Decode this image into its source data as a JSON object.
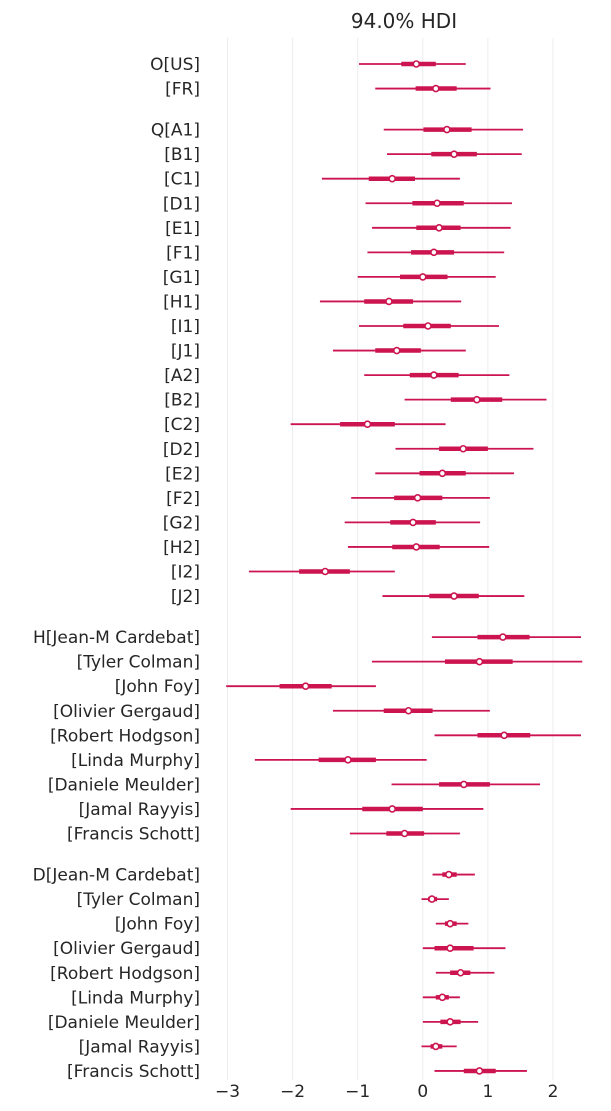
{
  "chart_data": {
    "type": "forest",
    "title": "94.0% HDI",
    "xlim": [
      -3.25,
      2.5
    ],
    "xticks": [
      -3,
      -2,
      -1,
      0,
      1,
      2
    ],
    "xtick_labels": [
      "−3",
      "−2",
      "−1",
      "0",
      "1",
      "2"
    ],
    "grid": "vertical",
    "color": "#cc1550",
    "groups": [
      {
        "name": "O",
        "rows": [
          {
            "label": "O[US]",
            "mean": -0.1,
            "hdi": [
              -0.98,
              0.66
            ],
            "iqr": [
              -0.33,
              0.2
            ]
          },
          {
            "label": "[FR]",
            "mean": 0.2,
            "hdi": [
              -0.73,
              1.04
            ],
            "iqr": [
              -0.11,
              0.52
            ]
          }
        ]
      },
      {
        "name": "Q",
        "rows": [
          {
            "label": "Q[A1]",
            "mean": 0.37,
            "hdi": [
              -0.6,
              1.54
            ],
            "iqr": [
              0.01,
              0.75
            ]
          },
          {
            "label": "[B1]",
            "mean": 0.48,
            "hdi": [
              -0.55,
              1.52
            ],
            "iqr": [
              0.13,
              0.83
            ]
          },
          {
            "label": "[C1]",
            "mean": -0.47,
            "hdi": [
              -1.55,
              0.57
            ],
            "iqr": [
              -0.83,
              -0.12
            ]
          },
          {
            "label": "[D1]",
            "mean": 0.22,
            "hdi": [
              -0.88,
              1.37
            ],
            "iqr": [
              -0.16,
              0.63
            ]
          },
          {
            "label": "[E1]",
            "mean": 0.25,
            "hdi": [
              -0.78,
              1.35
            ],
            "iqr": [
              -0.1,
              0.58
            ]
          },
          {
            "label": "[F1]",
            "mean": 0.17,
            "hdi": [
              -0.85,
              1.25
            ],
            "iqr": [
              -0.18,
              0.48
            ]
          },
          {
            "label": "[G1]",
            "mean": 0.0,
            "hdi": [
              -1.0,
              1.12
            ],
            "iqr": [
              -0.35,
              0.38
            ]
          },
          {
            "label": "[H1]",
            "mean": -0.52,
            "hdi": [
              -1.58,
              0.59
            ],
            "iqr": [
              -0.9,
              -0.15
            ]
          },
          {
            "label": "[I1]",
            "mean": 0.08,
            "hdi": [
              -0.98,
              1.17
            ],
            "iqr": [
              -0.3,
              0.43
            ]
          },
          {
            "label": "[J1]",
            "mean": -0.4,
            "hdi": [
              -1.38,
              0.66
            ],
            "iqr": [
              -0.73,
              -0.03
            ]
          },
          {
            "label": "[A2]",
            "mean": 0.17,
            "hdi": [
              -0.9,
              1.33
            ],
            "iqr": [
              -0.2,
              0.55
            ]
          },
          {
            "label": "[B2]",
            "mean": 0.83,
            "hdi": [
              -0.28,
              1.9
            ],
            "iqr": [
              0.43,
              1.22
            ]
          },
          {
            "label": "[C2]",
            "mean": -0.85,
            "hdi": [
              -2.03,
              0.35
            ],
            "iqr": [
              -1.27,
              -0.43
            ]
          },
          {
            "label": "[D2]",
            "mean": 0.62,
            "hdi": [
              -0.42,
              1.7
            ],
            "iqr": [
              0.25,
              1.0
            ]
          },
          {
            "label": "[E2]",
            "mean": 0.3,
            "hdi": [
              -0.73,
              1.4
            ],
            "iqr": [
              -0.05,
              0.66
            ]
          },
          {
            "label": "[F2]",
            "mean": -0.08,
            "hdi": [
              -1.1,
              1.03
            ],
            "iqr": [
              -0.44,
              0.3
            ]
          },
          {
            "label": "[G2]",
            "mean": -0.15,
            "hdi": [
              -1.2,
              0.88
            ],
            "iqr": [
              -0.5,
              0.2
            ]
          },
          {
            "label": "[H2]",
            "mean": -0.1,
            "hdi": [
              -1.15,
              1.02
            ],
            "iqr": [
              -0.47,
              0.26
            ]
          },
          {
            "label": "[I2]",
            "mean": -1.5,
            "hdi": [
              -2.67,
              -0.43
            ],
            "iqr": [
              -1.9,
              -1.12
            ]
          },
          {
            "label": "[J2]",
            "mean": 0.48,
            "hdi": [
              -0.62,
              1.56
            ],
            "iqr": [
              0.1,
              0.86
            ]
          }
        ]
      },
      {
        "name": "H",
        "rows": [
          {
            "label": "H[Jean-M Cardebat]",
            "mean": 1.23,
            "hdi": [
              0.14,
              2.43
            ],
            "iqr": [
              0.84,
              1.64
            ]
          },
          {
            "label": "[Tyler Colman]",
            "mean": 0.87,
            "hdi": [
              -0.78,
              2.45
            ],
            "iqr": [
              0.34,
              1.38
            ]
          },
          {
            "label": "[John Foy]",
            "mean": -1.8,
            "hdi": [
              -3.02,
              -0.72
            ],
            "iqr": [
              -2.2,
              -1.4
            ]
          },
          {
            "label": "[Olivier Gergaud]",
            "mean": -0.22,
            "hdi": [
              -1.38,
              1.03
            ],
            "iqr": [
              -0.6,
              0.15
            ]
          },
          {
            "label": "[Robert Hodgson]",
            "mean": 1.25,
            "hdi": [
              0.18,
              2.43
            ],
            "iqr": [
              0.84,
              1.65
            ]
          },
          {
            "label": "[Linda Murphy]",
            "mean": -1.15,
            "hdi": [
              -2.58,
              0.06
            ],
            "iqr": [
              -1.6,
              -0.72
            ]
          },
          {
            "label": "[Daniele Meulder]",
            "mean": 0.63,
            "hdi": [
              -0.48,
              1.8
            ],
            "iqr": [
              0.25,
              1.03
            ]
          },
          {
            "label": "[Jamal Rayyis]",
            "mean": -0.47,
            "hdi": [
              -2.03,
              0.93
            ],
            "iqr": [
              -0.93,
              0.0
            ]
          },
          {
            "label": "[Francis Schott]",
            "mean": -0.28,
            "hdi": [
              -1.12,
              0.57
            ],
            "iqr": [
              -0.56,
              0.02
            ]
          }
        ]
      },
      {
        "name": "D",
        "rows": [
          {
            "label": "D[Jean-M Cardebat]",
            "mean": 0.4,
            "hdi": [
              0.15,
              0.8
            ],
            "iqr": [
              0.3,
              0.52
            ]
          },
          {
            "label": "[Tyler Colman]",
            "mean": 0.14,
            "hdi": [
              -0.02,
              0.4
            ],
            "iqr": [
              0.08,
              0.22
            ]
          },
          {
            "label": "[John Foy]",
            "mean": 0.42,
            "hdi": [
              0.2,
              0.7
            ],
            "iqr": [
              0.34,
              0.52
            ]
          },
          {
            "label": "[Olivier Gergaud]",
            "mean": 0.42,
            "hdi": [
              0.0,
              1.27
            ],
            "iqr": [
              0.18,
              0.78
            ]
          },
          {
            "label": "[Robert Hodgson]",
            "mean": 0.58,
            "hdi": [
              0.2,
              1.1
            ],
            "iqr": [
              0.42,
              0.73
            ]
          },
          {
            "label": "[Linda Murphy]",
            "mean": 0.3,
            "hdi": [
              0.0,
              0.57
            ],
            "iqr": [
              0.2,
              0.4
            ]
          },
          {
            "label": "[Daniele Meulder]",
            "mean": 0.42,
            "hdi": [
              0.0,
              0.85
            ],
            "iqr": [
              0.27,
              0.58
            ]
          },
          {
            "label": "[Jamal Rayyis]",
            "mean": 0.2,
            "hdi": [
              -0.02,
              0.52
            ],
            "iqr": [
              0.12,
              0.3
            ]
          },
          {
            "label": "[Francis Schott]",
            "mean": 0.87,
            "hdi": [
              0.18,
              1.6
            ],
            "iqr": [
              0.63,
              1.12
            ]
          }
        ]
      }
    ]
  }
}
